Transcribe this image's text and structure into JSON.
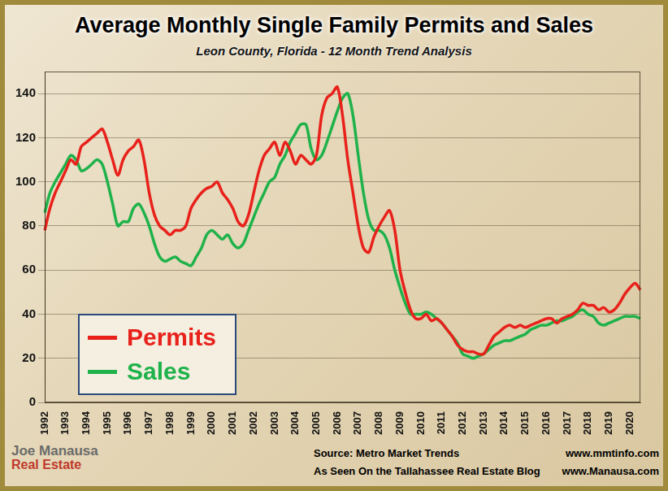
{
  "chart_data": {
    "type": "line",
    "title": "Average Monthly Single Family Permits and Sales",
    "subtitle": "Leon County, Florida - 12 Month Trend Analysis",
    "categories": [
      "1992",
      null,
      null,
      null,
      "1993",
      null,
      null,
      null,
      "1994",
      null,
      null,
      null,
      "1995",
      null,
      null,
      null,
      "1996",
      null,
      null,
      null,
      "1997",
      null,
      null,
      null,
      "1998",
      null,
      null,
      null,
      "1999",
      null,
      null,
      null,
      "2000",
      null,
      null,
      null,
      "2001",
      null,
      null,
      null,
      "2002",
      null,
      null,
      null,
      "2003",
      null,
      null,
      null,
      "2004",
      null,
      null,
      null,
      "2005",
      null,
      null,
      null,
      "2006",
      null,
      null,
      null,
      "2007",
      null,
      null,
      null,
      "2008",
      null,
      null,
      null,
      "2009",
      null,
      null,
      null,
      "2010",
      null,
      null,
      null,
      "2011",
      null,
      null,
      null,
      "2012",
      null,
      null,
      null,
      "2013",
      null,
      null,
      null,
      "2014",
      null,
      null,
      null,
      "2015",
      null,
      null,
      null,
      "2016",
      null,
      null,
      null,
      "2017",
      null,
      null,
      null,
      "2018",
      null,
      null,
      null,
      "2019",
      null,
      null,
      null,
      "2020",
      null,
      null
    ],
    "series": [
      {
        "name": "Permits",
        "color": "#e8211b",
        "values": [
          78,
          88,
          95,
          100,
          105,
          110,
          108,
          116,
          118,
          120,
          122,
          124,
          118,
          110,
          103,
          110,
          114,
          116,
          119,
          110,
          95,
          85,
          80,
          78,
          76,
          78,
          78,
          80,
          88,
          92,
          95,
          97,
          98,
          100,
          95,
          92,
          88,
          82,
          80,
          85,
          95,
          105,
          112,
          115,
          118,
          112,
          118,
          114,
          108,
          112,
          110,
          108,
          112,
          130,
          138,
          140,
          143,
          130,
          110,
          95,
          80,
          70,
          68,
          75,
          80,
          84,
          87,
          78,
          60,
          50,
          42,
          38,
          38,
          40,
          37,
          38,
          36,
          33,
          30,
          26,
          24,
          23,
          23,
          22,
          22,
          26,
          30,
          32,
          34,
          35,
          34,
          35,
          34,
          35,
          36,
          37,
          38,
          38,
          36,
          38,
          39,
          40,
          42,
          45,
          44,
          44,
          42,
          43,
          41,
          42,
          45,
          49,
          52,
          54,
          51
        ]
      },
      {
        "name": "Sales",
        "color": "#1fb24a",
        "values": [
          86,
          95,
          100,
          104,
          108,
          112,
          110,
          105,
          106,
          108,
          110,
          108,
          100,
          90,
          80,
          82,
          82,
          88,
          90,
          86,
          80,
          72,
          66,
          64,
          65,
          66,
          64,
          63,
          62,
          66,
          70,
          76,
          78,
          76,
          74,
          76,
          72,
          70,
          72,
          78,
          84,
          90,
          95,
          100,
          102,
          108,
          112,
          118,
          122,
          126,
          126,
          115,
          110,
          112,
          118,
          125,
          132,
          138,
          140,
          130,
          112,
          95,
          83,
          78,
          78,
          76,
          70,
          60,
          52,
          45,
          40,
          40,
          40,
          41,
          40,
          38,
          36,
          33,
          30,
          27,
          22,
          21,
          20,
          21,
          22,
          24,
          26,
          27,
          28,
          28,
          29,
          30,
          31,
          33,
          34,
          35,
          35,
          36,
          37,
          37,
          38,
          39,
          41,
          42,
          40,
          39,
          36,
          35,
          36,
          37,
          38,
          39,
          39,
          39,
          38
        ]
      }
    ],
    "ylim": [
      0,
      150
    ],
    "yticks": [
      0,
      20,
      40,
      60,
      80,
      100,
      120,
      140
    ],
    "grid": true,
    "legend": "lower left",
    "annotations": [
      "Joe Manausa",
      "Real Estate",
      "Source: Metro Market Trends",
      "www.mmtinfo.com",
      "As Seen On the Tallahassee Real Estate Blog",
      "www.Manausa.com"
    ]
  }
}
